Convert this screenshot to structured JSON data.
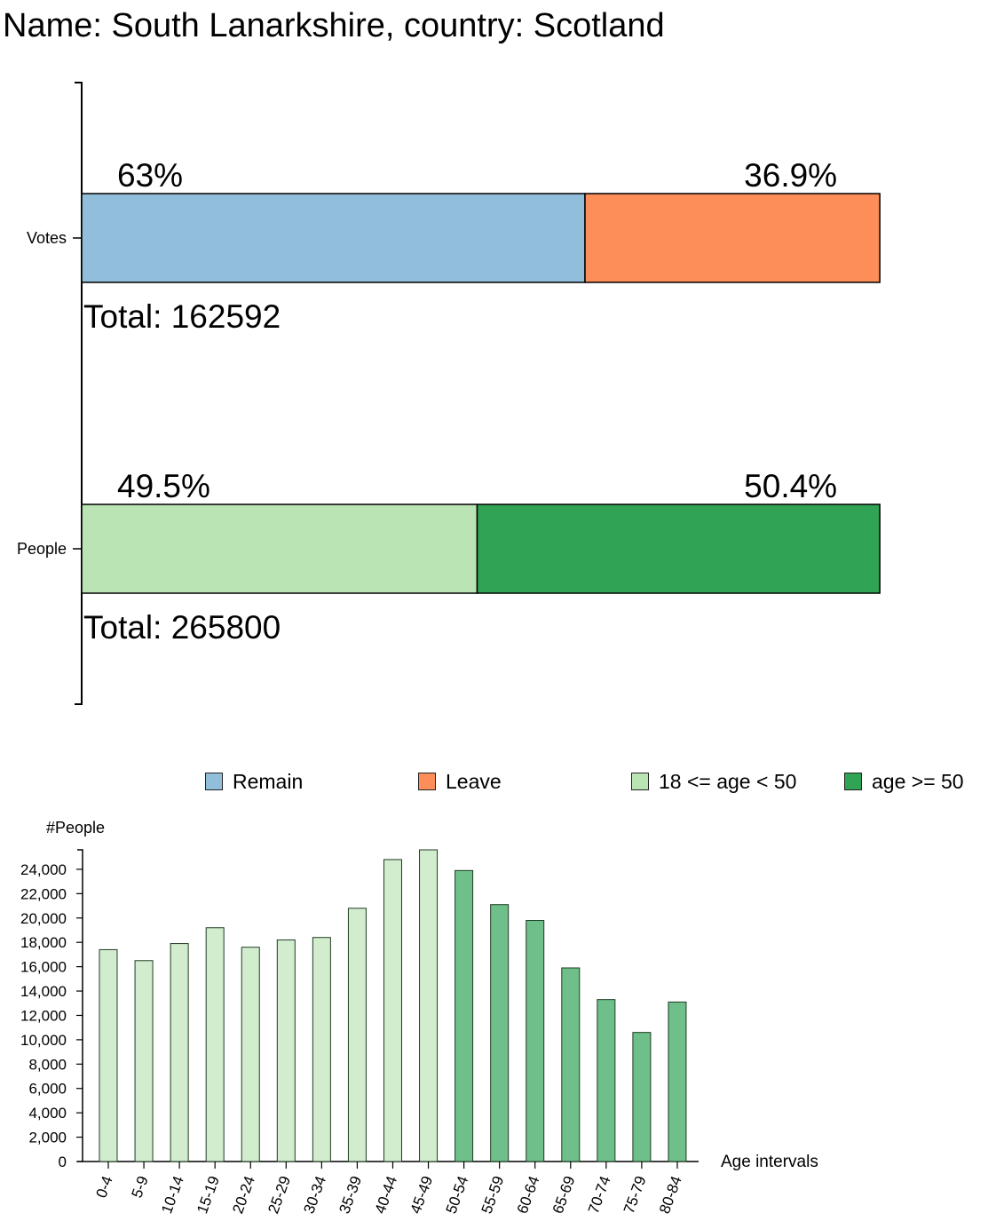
{
  "page": {
    "title": "Name: South Lanarkshire, country: Scotland"
  },
  "colors": {
    "remain": "#91bedb",
    "leave": "#fd8d59",
    "young": "#bae4b3",
    "old": "#31a354",
    "age_bar_young": "#d2ecce",
    "age_bar_old": "#6ebf89"
  },
  "legend": [
    {
      "label": "Remain",
      "color": "#91bedb"
    },
    {
      "label": "Leave",
      "color": "#fd8d59"
    },
    {
      "label": "18 <= age < 50",
      "color": "#bae4b3"
    },
    {
      "label": "age >= 50",
      "color": "#31a354"
    }
  ],
  "chart_data": [
    {
      "type": "bar",
      "orientation": "horizontal-stacked",
      "categories": [
        "Votes",
        "People"
      ],
      "rows": [
        {
          "category": "Votes",
          "total_label": "Total: 162592",
          "segments": [
            {
              "label": "63%",
              "value": 63,
              "color": "#91bedb"
            },
            {
              "label": "36.9%",
              "value": 36.9,
              "color": "#fd8d59"
            }
          ]
        },
        {
          "category": "People",
          "total_label": "Total: 265800",
          "segments": [
            {
              "label": "49.5%",
              "value": 49.5,
              "color": "#bae4b3"
            },
            {
              "label": "50.4%",
              "value": 50.4,
              "color": "#31a354"
            }
          ]
        }
      ],
      "xlim": [
        0,
        100
      ]
    },
    {
      "type": "bar",
      "ylabel": "#People",
      "xlabel": "Age intervals",
      "ylim": [
        0,
        25600
      ],
      "yticks": [
        0,
        2000,
        4000,
        6000,
        8000,
        10000,
        12000,
        14000,
        16000,
        18000,
        20000,
        22000,
        24000
      ],
      "ytick_labels": [
        "0",
        "2,000",
        "4,000",
        "6,000",
        "8,000",
        "10,000",
        "12,000",
        "14,000",
        "16,000",
        "18,000",
        "20,000",
        "22,000",
        "24,000"
      ],
      "categories": [
        "0-4",
        "5-9",
        "10-14",
        "15-19",
        "20-24",
        "25-29",
        "30-34",
        "35-39",
        "40-44",
        "45-49",
        "50-54",
        "55-59",
        "60-64",
        "65-69",
        "70-74",
        "75-79",
        "80-84"
      ],
      "values": [
        17400,
        16500,
        17900,
        19200,
        17600,
        18200,
        18400,
        20800,
        24800,
        25600,
        23900,
        21100,
        19800,
        15900,
        13300,
        10600,
        13100
      ],
      "groups": [
        "18 <= age < 50",
        "18 <= age < 50",
        "18 <= age < 50",
        "18 <= age < 50",
        "18 <= age < 50",
        "18 <= age < 50",
        "18 <= age < 50",
        "18 <= age < 50",
        "18 <= age < 50",
        "18 <= age < 50",
        "age >= 50",
        "age >= 50",
        "age >= 50",
        "age >= 50",
        "age >= 50",
        "age >= 50",
        "age >= 50"
      ]
    }
  ]
}
